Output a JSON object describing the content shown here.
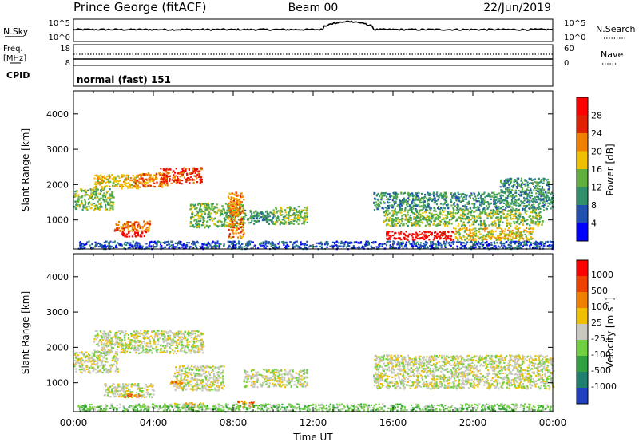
{
  "header": {
    "station": "Prince George (fitACF)",
    "beam": "Beam 00",
    "date": "22/Jun/2019"
  },
  "panels": {
    "nsky": {
      "left_label": "N.Sky",
      "left_ticks": [
        "10^5",
        "10^0"
      ],
      "right_ticks": [
        "10^5",
        "10^0"
      ],
      "right_label": "N.Search"
    },
    "freq": {
      "left_label_1": "Freq.",
      "left_label_2": "[MHz]",
      "left_ticks": [
        "18",
        "8"
      ],
      "right_ticks": [
        "60",
        "0"
      ],
      "right_label": "Nave"
    },
    "cpid": {
      "label": "CPID",
      "value": "normal (fast) 151"
    }
  },
  "chart_data": [
    {
      "type": "heatmap",
      "quantity": "Power",
      "ylabel": "Slant Range [km]",
      "xlabel": "Time UT",
      "x_ticks": [
        "00:00",
        "04:00",
        "08:00",
        "12:00",
        "16:00",
        "20:00",
        "00:00"
      ],
      "x_range_hours": [
        0,
        24
      ],
      "y_ticks": [
        1000,
        2000,
        3000,
        4000
      ],
      "ylim": [
        180,
        4650
      ],
      "colorbar": {
        "label": "Power [dB]",
        "ticks": [
          "4",
          "8",
          "12",
          "16",
          "20",
          "24",
          "28"
        ],
        "colors": [
          "#0000ff",
          "#2050b0",
          "#30906a",
          "#60b040",
          "#f0c000",
          "#f08000",
          "#e02000",
          "#ff0000"
        ]
      },
      "echo_regions": [
        {
          "t0": 0.0,
          "t1": 2.0,
          "r0": 1300,
          "r1": 1900,
          "level": 3
        },
        {
          "t0": 1.0,
          "t1": 3.2,
          "r0": 1900,
          "r1": 2300,
          "level": 4
        },
        {
          "t0": 3.0,
          "t1": 4.7,
          "r0": 1950,
          "r1": 2350,
          "level": 5
        },
        {
          "t0": 4.3,
          "t1": 6.4,
          "r0": 2050,
          "r1": 2500,
          "level": 6
        },
        {
          "t0": 2.0,
          "t1": 3.8,
          "r0": 700,
          "r1": 1000,
          "level": 5
        },
        {
          "t0": 2.4,
          "t1": 3.6,
          "r0": 550,
          "r1": 700,
          "level": 7
        },
        {
          "t0": 0.2,
          "t1": 24.0,
          "r0": 200,
          "r1": 420,
          "level": 1
        },
        {
          "t0": 5.8,
          "t1": 8.5,
          "r0": 800,
          "r1": 1500,
          "level": 3
        },
        {
          "t0": 7.7,
          "t1": 8.5,
          "r0": 500,
          "r1": 1800,
          "level": 5
        },
        {
          "t0": 8.5,
          "t1": 10.0,
          "r0": 900,
          "r1": 1300,
          "level": 2
        },
        {
          "t0": 10.0,
          "t1": 11.7,
          "r0": 900,
          "r1": 1400,
          "level": 3
        },
        {
          "t0": 15.0,
          "t1": 24.0,
          "r0": 1300,
          "r1": 1800,
          "level": 2
        },
        {
          "t0": 15.5,
          "t1": 23.5,
          "r0": 850,
          "r1": 1300,
          "level": 3
        },
        {
          "t0": 15.6,
          "t1": 19.0,
          "r0": 450,
          "r1": 700,
          "level": 7
        },
        {
          "t0": 19.0,
          "t1": 23.0,
          "r0": 450,
          "r1": 800,
          "level": 4
        },
        {
          "t0": 21.3,
          "t1": 23.8,
          "r0": 1800,
          "r1": 2200,
          "level": 2
        }
      ]
    },
    {
      "type": "heatmap",
      "quantity": "Velocity",
      "ylabel": "Slant Range [km]",
      "xlabel": "Time UT",
      "x_ticks": [
        "00:00",
        "04:00",
        "08:00",
        "12:00",
        "16:00",
        "20:00",
        "00:00"
      ],
      "x_range_hours": [
        0,
        24
      ],
      "y_ticks": [
        1000,
        2000,
        3000,
        4000
      ],
      "ylim": [
        180,
        4650
      ],
      "colorbar": {
        "label_main": "Velocity",
        "label_units": "[m s",
        "label_sup": "-1",
        "label_close": "]",
        "ticks": [
          "1000",
          "500",
          "100",
          "25",
          "-25",
          "-100",
          "-500",
          "-1000"
        ],
        "colors": [
          "#2040c0",
          "#208070",
          "#30a040",
          "#70d040",
          "#c8c8c0",
          "#f0c000",
          "#f08000",
          "#f04000",
          "#ff0000"
        ]
      },
      "echo_regions": [
        {
          "t0": 0.0,
          "t1": 2.2,
          "r0": 1300,
          "r1": 1900,
          "level": 4
        },
        {
          "t0": 1.0,
          "t1": 6.5,
          "r0": 1850,
          "r1": 2500,
          "level": 4
        },
        {
          "t0": 1.5,
          "t1": 4.0,
          "r0": 600,
          "r1": 1000,
          "level": 4
        },
        {
          "t0": 2.5,
          "t1": 3.4,
          "r0": 600,
          "r1": 720,
          "level": 6
        },
        {
          "t0": 5.0,
          "t1": 7.5,
          "r0": 800,
          "r1": 1500,
          "level": 4
        },
        {
          "t0": 4.8,
          "t1": 5.4,
          "r0": 1000,
          "r1": 1100,
          "level": 6
        },
        {
          "t0": 8.2,
          "t1": 9.0,
          "r0": 300,
          "r1": 500,
          "level": 6
        },
        {
          "t0": 5.0,
          "t1": 6.5,
          "r0": 300,
          "r1": 450,
          "level": 5
        },
        {
          "t0": 0.2,
          "t1": 24.0,
          "r0": 200,
          "r1": 420,
          "level": 3
        },
        {
          "t0": 8.5,
          "t1": 11.7,
          "r0": 900,
          "r1": 1400,
          "level": 4
        },
        {
          "t0": 15.0,
          "t1": 24.0,
          "r0": 850,
          "r1": 1800,
          "level": 4
        }
      ]
    }
  ]
}
